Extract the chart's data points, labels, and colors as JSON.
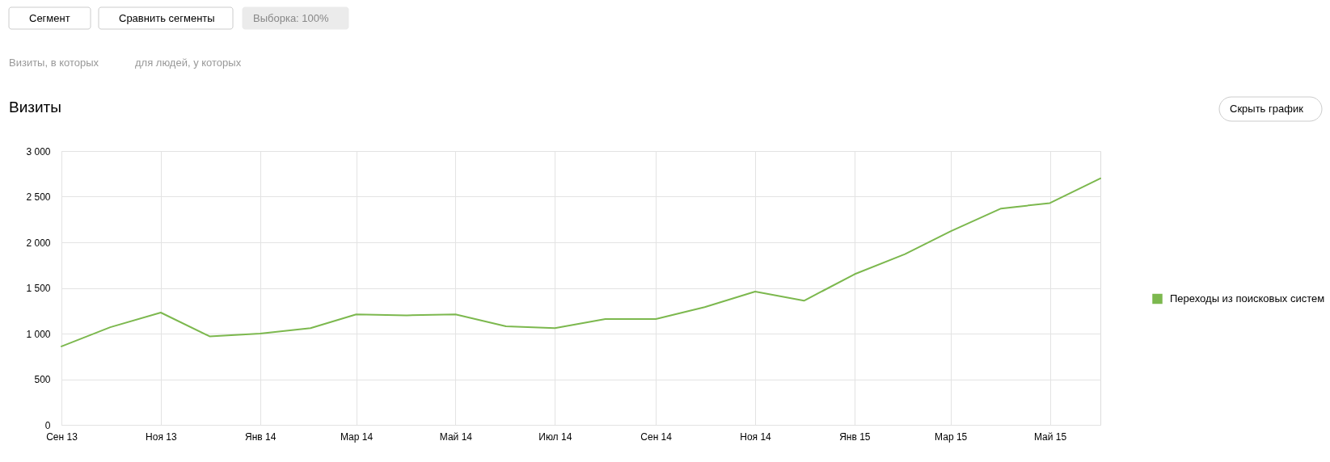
{
  "chart_data": {
    "type": "line",
    "title": "Визиты",
    "annotations": [
      "Сегмент",
      "Сравнить сегменты",
      "Выборка: 100%",
      "Визиты, в которых",
      "для людей, у которых",
      "Скрыть график"
    ],
    "x": [
      "2013-09",
      "2013-10",
      "2013-11",
      "2013-12",
      "2014-01",
      "2014-02",
      "2014-03",
      "2014-04",
      "2014-05",
      "2014-06",
      "2014-07",
      "2014-08",
      "2014-09",
      "2014-10",
      "2014-11",
      "2014-12",
      "2015-01",
      "2015-02",
      "2015-03",
      "2015-04",
      "2015-05",
      "2015-06"
    ],
    "series": [
      {
        "name": "Переходы из поисковых систем",
        "color": "#7cb84e",
        "values": [
          860,
          1070,
          1230,
          970,
          1000,
          1060,
          1210,
          1200,
          1210,
          1080,
          1060,
          1160,
          1160,
          1290,
          1460,
          1360,
          1650,
          1870,
          2120,
          2370,
          2430,
          2700
        ]
      }
    ],
    "xlim": [
      "2013-09",
      "2015-06"
    ],
    "xticks": [
      {
        "value": "2013-09",
        "label": "Сен 13"
      },
      {
        "value": "2013-11",
        "label": "Ноя 13"
      },
      {
        "value": "2014-01",
        "label": "Янв 14"
      },
      {
        "value": "2014-03",
        "label": "Мар 14"
      },
      {
        "value": "2014-05",
        "label": "Май 14"
      },
      {
        "value": "2014-07",
        "label": "Июл 14"
      },
      {
        "value": "2014-09",
        "label": "Сен 14"
      },
      {
        "value": "2014-11",
        "label": "Ноя 14"
      },
      {
        "value": "2015-01",
        "label": "Янв 15"
      },
      {
        "value": "2015-03",
        "label": "Мар 15"
      },
      {
        "value": "2015-05",
        "label": "Май 15"
      }
    ],
    "ylim": [
      0,
      3000
    ],
    "yticks": [
      0,
      500,
      {
        "value": 1000,
        "label": "1 000"
      },
      {
        "value": 1500,
        "label": "1 500"
      },
      {
        "value": 2000,
        "label": "2 000"
      },
      {
        "value": 2500,
        "label": "2 500"
      },
      {
        "value": 3000,
        "label": "3 000"
      }
    ],
    "grid": true,
    "legend": "right"
  }
}
